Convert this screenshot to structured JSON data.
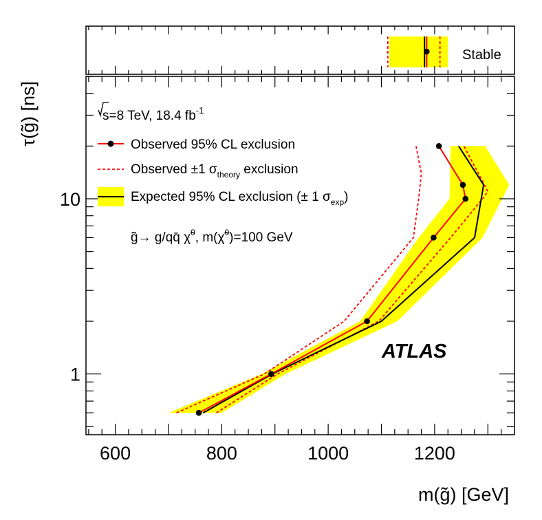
{
  "chart_data": {
    "type": "line",
    "xlabel": "m(g̃) [GeV]",
    "ylabel": "τ(g̃) [ns]",
    "xlim": [
      545,
      1350
    ],
    "ylim": [
      0.45,
      50
    ],
    "y_scale": "log",
    "x_ticks": [
      600,
      800,
      1000,
      1200
    ],
    "y_ticks": [
      1,
      10
    ],
    "legend_placement": "top-left",
    "series": [
      {
        "name": "Observed 95% CL exclusion",
        "color": "#ff0000",
        "points": [
          [
            757,
            0.6
          ],
          [
            893,
            1.0
          ],
          [
            1073,
            2.0
          ],
          [
            1198,
            6.0
          ],
          [
            1258,
            10.0
          ],
          [
            1253,
            12.0
          ],
          [
            1208,
            20.0
          ]
        ],
        "stable": 1185
      },
      {
        "name": "Observed ±1 σ_theory exclusion",
        "color": "#ff0000",
        "dashed": true,
        "lower": [
          [
            715,
            0.6
          ],
          [
            880,
            1.0
          ],
          [
            1030,
            2.0
          ],
          [
            1160,
            6.0
          ],
          [
            1170,
            10.0
          ],
          [
            1175,
            14.0
          ],
          [
            1165,
            20.0
          ]
        ],
        "upper": [
          [
            790,
            0.6
          ],
          [
            905,
            1.0
          ],
          [
            1095,
            2.0
          ],
          [
            1230,
            6.0
          ],
          [
            1290,
            10.0
          ],
          [
            1300,
            11.0
          ],
          [
            1255,
            20.0
          ]
        ],
        "stable_lower": 1112,
        "stable_upper": 1210
      },
      {
        "name": "Expected 95% CL exclusion (± 1 σ_exp)",
        "color": "#000000",
        "band_color": "#ffff00",
        "median": [
          [
            765,
            0.6
          ],
          [
            895,
            1.0
          ],
          [
            1100,
            2.0
          ],
          [
            1275,
            6.0
          ],
          [
            1292,
            12.0
          ],
          [
            1245,
            20.0
          ]
        ],
        "band_low": [
          [
            700,
            0.6
          ],
          [
            875,
            1.0
          ],
          [
            1060,
            2.0
          ],
          [
            1170,
            6.0
          ],
          [
            1228,
            10.0
          ],
          [
            1230,
            20.0
          ]
        ],
        "band_high": [
          [
            800,
            0.6
          ],
          [
            920,
            1.0
          ],
          [
            1130,
            2.0
          ],
          [
            1290,
            6.0
          ],
          [
            1340,
            12.0
          ],
          [
            1295,
            20.0
          ]
        ],
        "stable": 1181,
        "stable_band": [
          1115,
          1225
        ]
      }
    ]
  },
  "top_panel": {
    "label": "Stable"
  },
  "annotations": {
    "energy": {
      "root": "s",
      "text": "=8 TeV, 18.4 fb",
      "sup": "-1"
    },
    "process": {
      "text1": "g̃→ g/qq̄ χ̃",
      "sup1": "0",
      "text2": ", m(χ̃",
      "sup2": "0",
      "text3": ")=100 GeV"
    },
    "experiment": "ATLAS"
  },
  "legend": [
    {
      "text": "Observed 95% CL exclusion"
    },
    {
      "text": "Observed ±1 σ",
      "sub": "theory",
      "tail": " exclusion"
    },
    {
      "text": "Expected 95% CL exclusion (± 1 σ",
      "sub": "exp",
      "tail": ")"
    }
  ]
}
